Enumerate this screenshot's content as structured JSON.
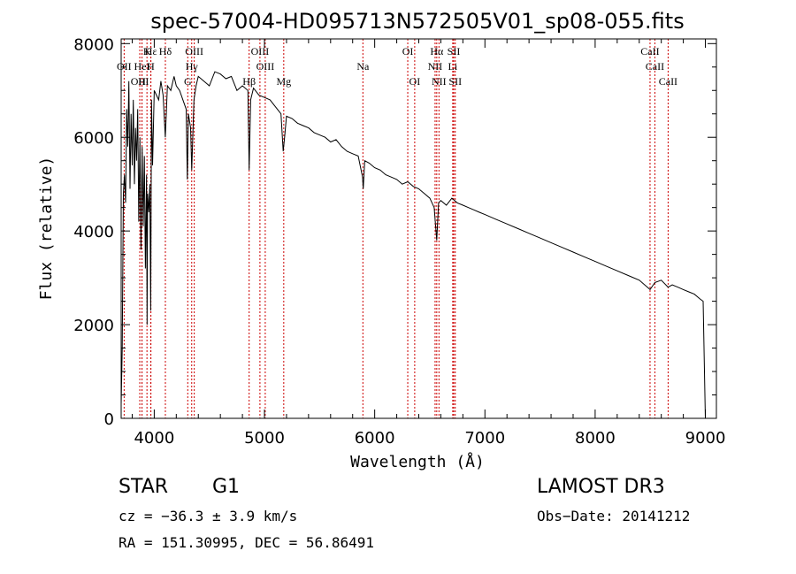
{
  "chart_data": {
    "type": "line",
    "title": "spec-57004-HD095713N572505V01_sp08-055.fits",
    "xlabel": "Wavelength (Å)",
    "ylabel": "Flux (relative)",
    "xlim": [
      3700,
      9100
    ],
    "ylim": [
      0,
      8100
    ],
    "xticks": [
      4000,
      5000,
      6000,
      7000,
      8000,
      9000
    ],
    "yticks": [
      0,
      2000,
      4000,
      6000,
      8000
    ],
    "series": [
      {
        "name": "flux",
        "x": [
          3700,
          3710,
          3720,
          3730,
          3740,
          3750,
          3760,
          3770,
          3780,
          3790,
          3800,
          3810,
          3820,
          3830,
          3840,
          3850,
          3860,
          3870,
          3880,
          3890,
          3900,
          3910,
          3920,
          3930,
          3935,
          3940,
          3950,
          3960,
          3968,
          3975,
          3985,
          4000,
          4020,
          4040,
          4060,
          4080,
          4100,
          4120,
          4150,
          4180,
          4200,
          4230,
          4260,
          4290,
          4300,
          4310,
          4330,
          4340,
          4360,
          4380,
          4400,
          4450,
          4500,
          4550,
          4600,
          4650,
          4700,
          4750,
          4800,
          4850,
          4861,
          4875,
          4900,
          4950,
          5000,
          5050,
          5100,
          5150,
          5170,
          5183,
          5200,
          5250,
          5300,
          5350,
          5400,
          5450,
          5500,
          5550,
          5600,
          5650,
          5700,
          5750,
          5800,
          5850,
          5890,
          5896,
          5910,
          5950,
          6000,
          6050,
          6100,
          6150,
          6200,
          6250,
          6300,
          6350,
          6400,
          6450,
          6500,
          6540,
          6563,
          6580,
          6600,
          6650,
          6700,
          6750,
          6800,
          6850,
          6900,
          6950,
          7000,
          7100,
          7200,
          7300,
          7400,
          7500,
          7600,
          7700,
          7800,
          7900,
          8000,
          8100,
          8200,
          8300,
          8400,
          8498,
          8542,
          8600,
          8662,
          8700,
          8750,
          8800,
          8850,
          8900,
          8950,
          8980,
          8990,
          9000
        ],
        "y": [
          300,
          1500,
          4800,
          5200,
          4600,
          6600,
          5800,
          7200,
          4900,
          6500,
          5400,
          6800,
          5000,
          6200,
          5500,
          6600,
          4200,
          6000,
          3600,
          5800,
          4100,
          5600,
          3200,
          5200,
          2000,
          4800,
          4400,
          5000,
          2300,
          6800,
          5400,
          7000,
          6900,
          6800,
          7200,
          6900,
          6000,
          7100,
          7000,
          7300,
          7100,
          7000,
          6800,
          6600,
          5100,
          6500,
          6200,
          5300,
          6800,
          7100,
          7300,
          7200,
          7100,
          7400,
          7350,
          7250,
          7300,
          7000,
          7100,
          7000,
          5300,
          6800,
          7050,
          6900,
          6850,
          6800,
          6650,
          6500,
          5700,
          6000,
          6450,
          6400,
          6300,
          6250,
          6200,
          6100,
          6050,
          6000,
          5900,
          5950,
          5800,
          5700,
          5650,
          5600,
          5150,
          4900,
          5500,
          5450,
          5350,
          5300,
          5200,
          5150,
          5100,
          5000,
          5050,
          4950,
          4900,
          4800,
          4700,
          4500,
          3800,
          4600,
          4650,
          4550,
          4700,
          4600,
          4550,
          4500,
          4450,
          4400,
          4350,
          4250,
          4150,
          4050,
          3950,
          3850,
          3750,
          3650,
          3550,
          3450,
          3350,
          3250,
          3150,
          3050,
          2950,
          2750,
          2900,
          2950,
          2800,
          2850,
          2800,
          2750,
          2700,
          2650,
          2550,
          2500,
          1200,
          0
        ]
      }
    ],
    "spectral_lines": [
      {
        "name": "Hε",
        "x": 3970,
        "row": 1
      },
      {
        "name": "K",
        "x": 3934,
        "row": 1
      },
      {
        "name": "Hδ",
        "x": 4101,
        "row": 1
      },
      {
        "name": "OIII",
        "x": 4363,
        "row": 1
      },
      {
        "name": "OIII",
        "x": 4959,
        "row": 1
      },
      {
        "name": "OI",
        "x": 6300,
        "row": 1
      },
      {
        "name": "Hα",
        "x": 6563,
        "row": 1
      },
      {
        "name": "SII",
        "x": 6717,
        "row": 1
      },
      {
        "name": "CaII",
        "x": 8498,
        "row": 1
      },
      {
        "name": "OII",
        "x": 3727,
        "row": 2
      },
      {
        "name": "HeI",
        "x": 3889,
        "row": 2
      },
      {
        "name": "H",
        "x": 3968,
        "row": 2
      },
      {
        "name": "Hγ",
        "x": 4340,
        "row": 2
      },
      {
        "name": "OIII",
        "x": 5007,
        "row": 2
      },
      {
        "name": "Na",
        "x": 5893,
        "row": 2
      },
      {
        "name": "NII",
        "x": 6548,
        "row": 2
      },
      {
        "name": "Li",
        "x": 6708,
        "row": 2
      },
      {
        "name": "CaII",
        "x": 8542,
        "row": 2
      },
      {
        "name": "OIII",
        "x": 3869,
        "row": 3
      },
      {
        "name": "H",
        "x": 3889,
        "row": 3
      },
      {
        "name": "G",
        "x": 4304,
        "row": 3
      },
      {
        "name": "Hβ",
        "x": 4861,
        "row": 3
      },
      {
        "name": "Mg",
        "x": 5175,
        "row": 3
      },
      {
        "name": "OI",
        "x": 6363,
        "row": 3
      },
      {
        "name": "NII",
        "x": 6583,
        "row": 3
      },
      {
        "name": "SII",
        "x": 6731,
        "row": 3
      },
      {
        "name": "CaII",
        "x": 8662,
        "row": 3
      }
    ]
  },
  "info": {
    "object_class": "STAR",
    "subclass": "G1",
    "survey": "LAMOST DR3",
    "cz": "cz = −36.3 ± 3.9 km/s",
    "obs_date": "Obs−Date: 20141212",
    "coords": "RA = 151.30995, DEC =  56.86491"
  },
  "colors": {
    "line": "#000000",
    "marker": "#cc0000"
  }
}
